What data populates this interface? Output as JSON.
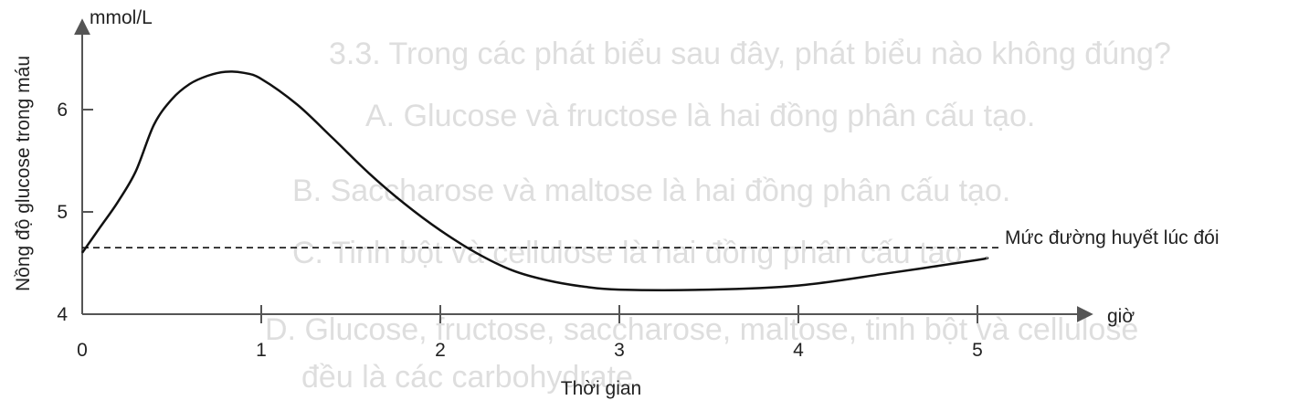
{
  "background_text": [
    "3.3. Trong các phát biểu sau đây, phát biểu nào không đúng?",
    "A. Glucose và fructose là hai đồng phân cấu tạo.",
    "B. Saccharose và maltose là hai đồng phân cấu tạo.",
    "C. Tinh bột và cellulose là hai đồng phân cấu tạo.",
    "D. Glucose, fructose, saccharose, maltose, tinh bột và cellulose",
    "đều là các carbohydrate."
  ],
  "chart_data": {
    "type": "line",
    "title": "",
    "xlabel": "Thời gian",
    "x_unit": "giờ",
    "ylabel": "Nồng độ glucose trong máu",
    "y_unit": "mmol/L",
    "xlim": [
      0,
      5.3
    ],
    "ylim": [
      4,
      7
    ],
    "x_ticks": [
      "0",
      "1",
      "2",
      "3",
      "4",
      "5"
    ],
    "y_ticks": [
      "4",
      "5",
      "6"
    ],
    "grid": false,
    "series": [
      {
        "x": [
          0,
          0.1,
          0.2,
          0.3,
          0.4,
          0.5,
          0.6,
          0.7,
          0.8,
          0.9,
          1.0,
          1.2,
          1.4,
          1.6,
          1.8,
          2.0,
          2.2,
          2.4,
          2.6,
          2.8,
          3.0,
          3.5,
          4.0,
          4.5,
          5.0,
          5.05
        ],
        "y": [
          4.6,
          4.85,
          5.1,
          5.4,
          5.85,
          6.1,
          6.25,
          6.33,
          6.37,
          6.36,
          6.3,
          6.05,
          5.72,
          5.38,
          5.08,
          4.82,
          4.6,
          4.43,
          4.33,
          4.27,
          4.24,
          4.24,
          4.28,
          4.4,
          4.53,
          4.55
        ]
      }
    ],
    "reference_line": {
      "y": 4.65,
      "label": "Mức đường huyết lúc đói",
      "style": "dashed"
    }
  }
}
